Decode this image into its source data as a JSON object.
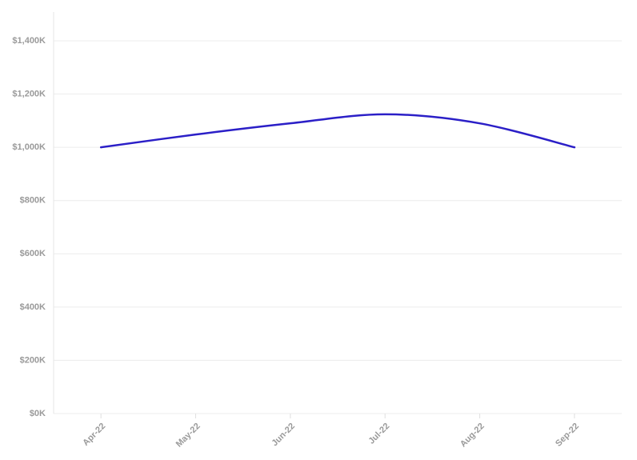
{
  "chart_data": {
    "type": "line",
    "categories": [
      "Apr-22",
      "May-22",
      "Jun-22",
      "Jul-22",
      "Aug-22",
      "Sep-22"
    ],
    "series": [
      {
        "color": "#2b1fc7",
        "values": [
          1000000,
          1048000,
          1090000,
          1124000,
          1090000,
          1000000
        ]
      }
    ],
    "ylim": [
      0,
      1500000
    ],
    "yticks": [
      {
        "value": 0,
        "label": "$0K"
      },
      {
        "value": 200000,
        "label": "$200K"
      },
      {
        "value": 400000,
        "label": "$400K"
      },
      {
        "value": 600000,
        "label": "$600K"
      },
      {
        "value": 800000,
        "label": "$800K"
      },
      {
        "value": 1000000,
        "label": "$1,000K"
      },
      {
        "value": 1200000,
        "label": "$1,200K"
      },
      {
        "value": 1400000,
        "label": "$1,400K"
      }
    ],
    "grid": true,
    "smooth": true
  }
}
